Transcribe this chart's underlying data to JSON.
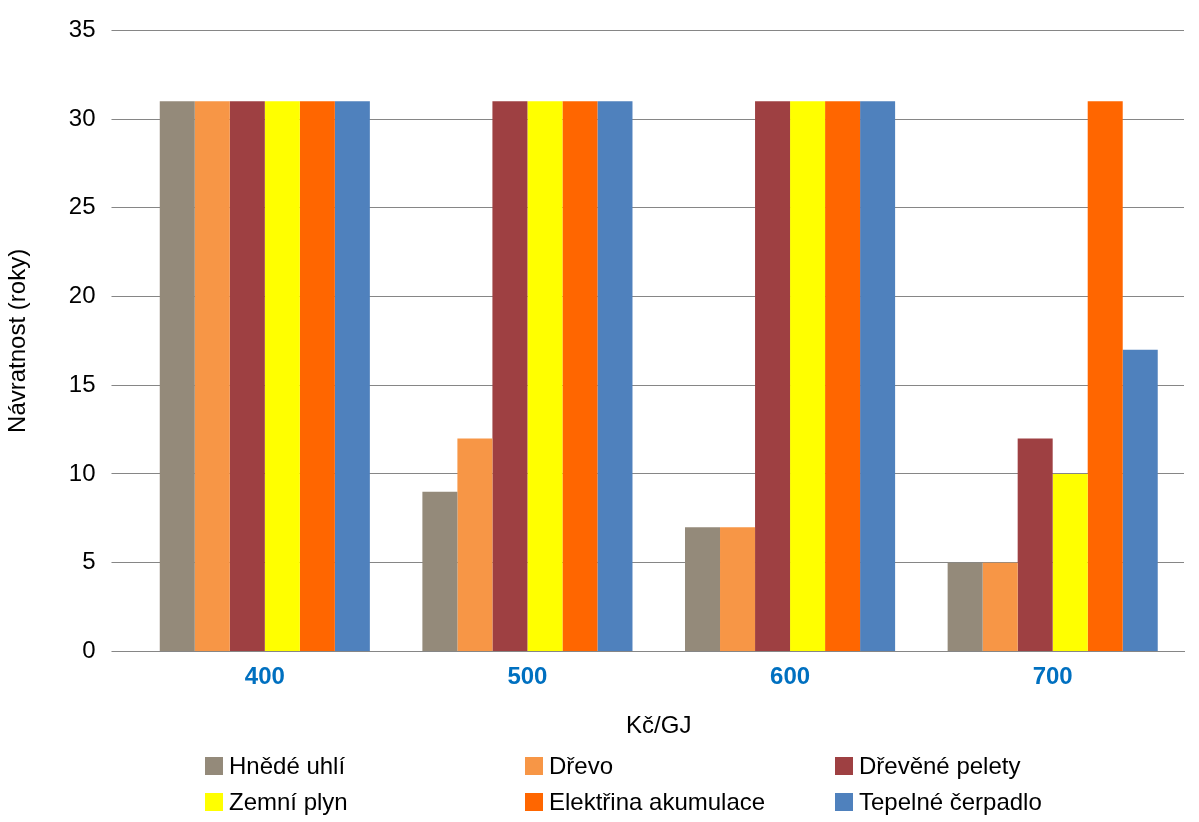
{
  "chart_data": {
    "type": "bar",
    "xlabel": "Kč/GJ",
    "ylabel": "Návratnost (roky)",
    "categories": [
      "400",
      "500",
      "600",
      "700"
    ],
    "series": [
      {
        "name": "Hnědé uhlí",
        "color": "#948a7a",
        "values": [
          31,
          9,
          7,
          5
        ]
      },
      {
        "name": "Dřevo",
        "color": "#f79646",
        "values": [
          31,
          12,
          7,
          5
        ]
      },
      {
        "name": "Dřevěné pelety",
        "color": "#9e4042",
        "values": [
          31,
          31,
          31,
          12
        ]
      },
      {
        "name": "Zemní plyn",
        "color": "#ffff00",
        "values": [
          31,
          31,
          31,
          10
        ]
      },
      {
        "name": "Elektřina akumulace",
        "color": "#ff6600",
        "values": [
          31,
          31,
          31,
          31
        ]
      },
      {
        "name": "Tepelné čerpadlo",
        "color": "#4f81bd",
        "values": [
          31,
          31,
          31,
          17
        ]
      }
    ],
    "ylim": [
      0,
      35
    ],
    "yticks": [
      0,
      5,
      10,
      15,
      20,
      25,
      30,
      35
    ],
    "grid": "y",
    "legend": "bottom"
  }
}
